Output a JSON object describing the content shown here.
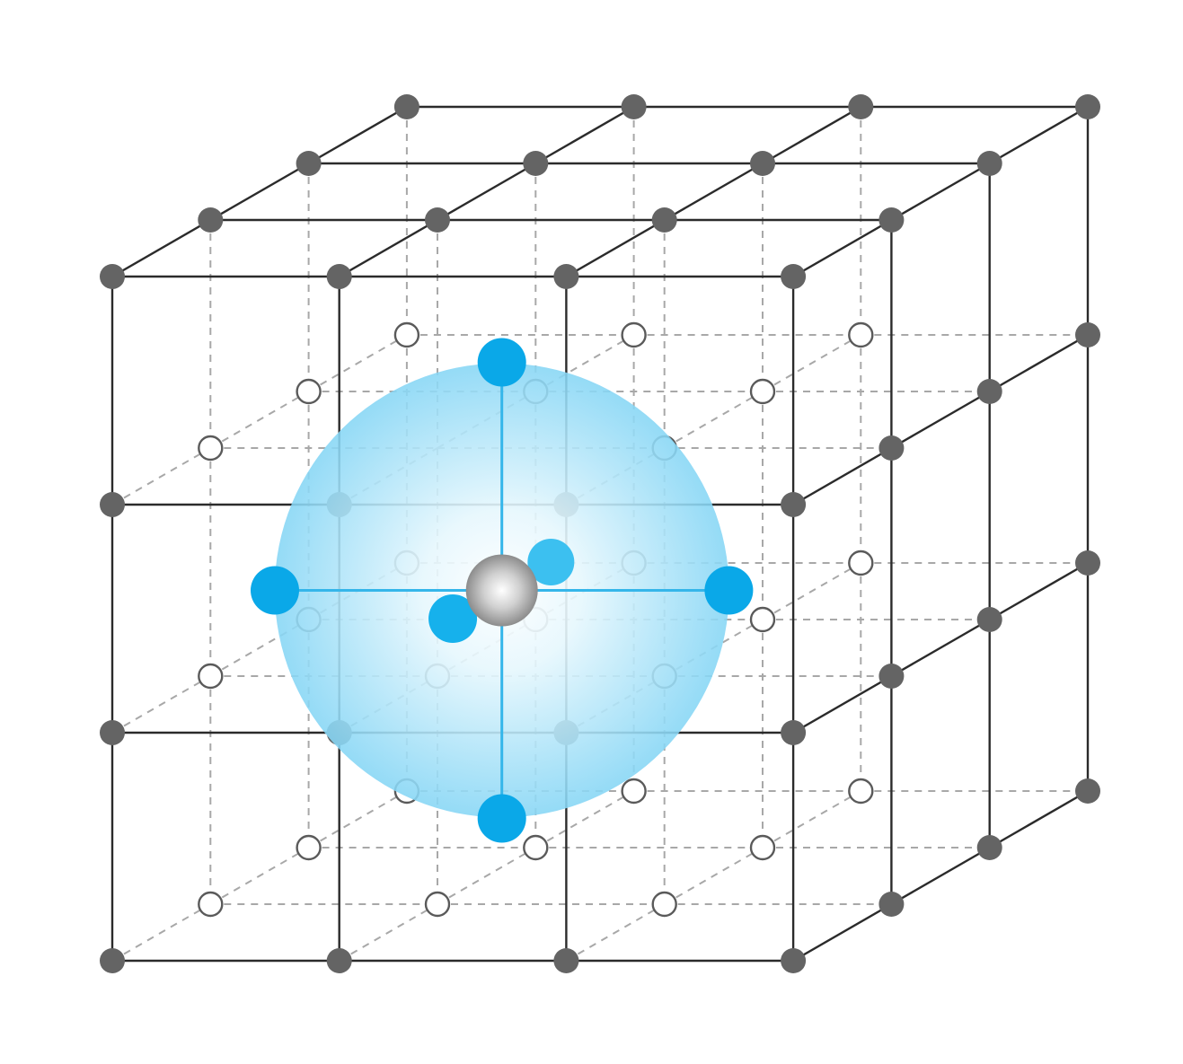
{
  "diagram": {
    "kind": "cubic lattice with central interstitial site",
    "colors": {
      "background": "#ffffff",
      "edge": "#2b2b2b",
      "hidden_edge": "#a8a8a8",
      "lattice_atom": "#646464",
      "open_site": "#ffffff",
      "open_site_stroke": "#5a5a5a",
      "neighbor_atom": "#0aa8e8",
      "bond": "#35b6ea",
      "sphere_edge": "#86d6f5",
      "center_atom": "#9a9a9a"
    },
    "legend": []
  }
}
